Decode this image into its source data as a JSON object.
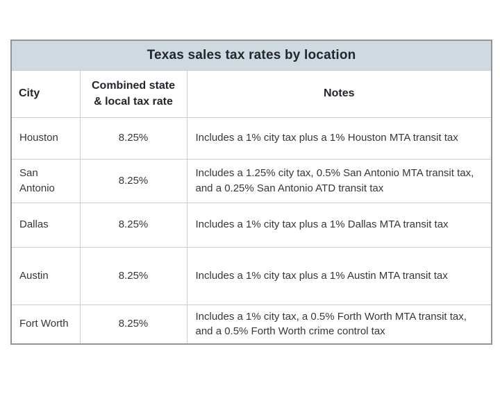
{
  "chart_data": {
    "type": "table",
    "title": "Texas sales tax rates by location",
    "columns": [
      "City",
      "Combined state & local tax rate",
      "Notes"
    ],
    "rows": [
      [
        "Houston",
        "8.25%",
        "Includes a 1% city tax plus a 1% Houston MTA transit tax"
      ],
      [
        "San Antonio",
        "8.25%",
        "Includes a 1.25% city tax, 0.5% San Antonio MTA transit tax, and a 0.25% San Antonio ATD transit tax"
      ],
      [
        "Dallas",
        "8.25%",
        "Includes a 1% city tax plus a 1% Dallas MTA transit tax"
      ],
      [
        "Austin",
        "8.25%",
        "Includes a 1% city tax plus a 1% Austin MTA transit tax"
      ],
      [
        "Fort Worth",
        "8.25%",
        "Includes a 1% city tax, a 0.5% Forth Worth MTA transit tax, and a 0.5% Forth Worth crime control tax"
      ]
    ],
    "layout_hints": {
      "title_row_background": true,
      "grid": true,
      "rate_column_alignment": "center",
      "notes_column_alignment": "left"
    }
  },
  "colors": {
    "title_bg": "#cfd9e0",
    "outer_border": "#8d959b",
    "grid_line": "#c7ced3",
    "heading_text": "#22262b",
    "body_text": "#33373b",
    "page_bg": "#ffffff"
  }
}
